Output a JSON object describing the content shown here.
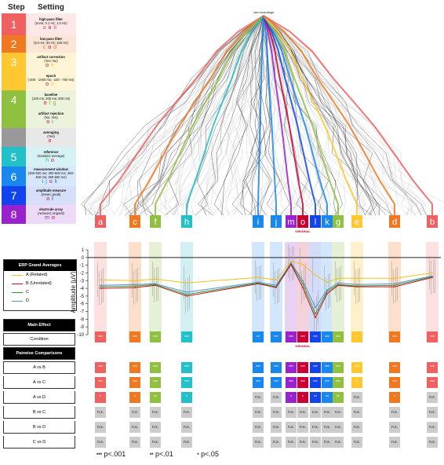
{
  "header": {
    "step": "Step",
    "setting": "Setting"
  },
  "steps": [
    {
      "num": "1",
      "color": "#f06060",
      "bg": "#fde8e8",
      "title": "high-pass filter",
      "detail": "(none; 0.1 Hz; 1.0 Hz)",
      "codes": "a o b"
    },
    {
      "num": "2",
      "color": "#f07820",
      "bg": "#fde6d6",
      "title": "low-pass filter",
      "detail": "(5.0 Hz; 30 Hz; 100 Hz)",
      "codes": "c o d"
    },
    {
      "num": "3",
      "color": "#ffc830",
      "bg": "#fff4d6",
      "title": "artifact correction",
      "detail": "(Yes; No)",
      "codes": "o e"
    },
    {
      "num": "",
      "color": "#ffc830",
      "bg": "#fff4d6",
      "title": "epoch",
      "detail": "(-200 - 1000 ms; -100 - 700 ms)",
      "codes": "o e"
    },
    {
      "num": "4",
      "color": "#90c040",
      "bg": "#ebf3dc",
      "title": "baseline",
      "detail": "(100 ms; 200 ms; 300 ms)",
      "codes": "o f g"
    },
    {
      "num": "",
      "color": "#90c040",
      "bg": "#ebf3dc",
      "title": "artifact rejection",
      "detail": "(No; Yes)",
      "codes": "o i"
    },
    {
      "num": "",
      "color": "#999999",
      "bg": "#e8e8e8",
      "title": "averaging",
      "detail": "(Yes)",
      "codes": "o"
    },
    {
      "num": "5",
      "color": "#22c0c8",
      "bg": "#d6f2f4",
      "title": "reference",
      "detail": "(mastoid; average)",
      "codes": "h o"
    },
    {
      "num": "6",
      "color": "#1888ee",
      "bg": "#d8e8fc",
      "title": "measurement window",
      "detail": "(300-500 ms; 300-600 ms; 350-450 ms; 350-550 ms)",
      "codes": "i j o k"
    },
    {
      "num": "7",
      "color": "#1144ee",
      "bg": "#d6def8",
      "title": "amplitude measure",
      "detail": "(mean; peak)",
      "codes": "o l"
    },
    {
      "num": "8",
      "color": "#9922cc",
      "bg": "#ecdaf6",
      "title": "electrode array",
      "detail": "(reduced; original)",
      "codes": "m o"
    }
  ],
  "tree": {
    "root_label": "raw recordings",
    "original_label": "ORIGINAL"
  },
  "pipelines": [
    {
      "letter": "a",
      "color": "#f06060",
      "bg": "#fde0e0"
    },
    {
      "letter": "c",
      "color": "#f07820",
      "bg": "#fde0cc"
    },
    {
      "letter": "f",
      "color": "#90c040",
      "bg": "#e6f0d4"
    },
    {
      "letter": "h",
      "color": "#22c0c8",
      "bg": "#d2f0f2"
    },
    {
      "letter": "i",
      "color": "#1888ee",
      "bg": "#d2e6fc"
    },
    {
      "letter": "j",
      "color": "#1888ee",
      "bg": "#d2e6fc"
    },
    {
      "letter": "m",
      "color": "#9922cc",
      "bg": "#e8d2f4"
    },
    {
      "letter": "o",
      "color": "#cc0033",
      "bg": "#f4d2dc"
    },
    {
      "letter": "l",
      "color": "#1144ee",
      "bg": "#d2dcf8"
    },
    {
      "letter": "k",
      "color": "#1888ee",
      "bg": "#d2e6fc"
    },
    {
      "letter": "g",
      "color": "#90c040",
      "bg": "#e6f0d4"
    },
    {
      "letter": "e",
      "color": "#ffc830",
      "bg": "#fff0cc"
    },
    {
      "letter": "d",
      "color": "#f07820",
      "bg": "#fde0cc"
    },
    {
      "letter": "b",
      "color": "#f06060",
      "bg": "#fde0e0"
    }
  ],
  "legend": {
    "title": "ERP Grand Averages",
    "items": [
      {
        "label": "A (Related)",
        "color": "#f0c020"
      },
      {
        "label": "B (Unrelated)",
        "color": "#cc1010"
      },
      {
        "label": "C",
        "color": "#2a9a3a"
      },
      {
        "label": "D",
        "color": "#5a8ad0"
      }
    ]
  },
  "stats": {
    "main_effect": "Main Effect",
    "condition": "Condition",
    "pairwise": "Pairwise Comparisons",
    "comparisons": [
      "A vs B",
      "A vs C",
      "A vs D",
      "B vs C",
      "B vs D",
      "C vs D"
    ],
    "ns": "n.s."
  },
  "footnote": {
    "p001": "p<.001",
    "p01": "p<.01",
    "p05": "p<.05"
  },
  "chart_data": {
    "type": "line",
    "ylabel": "Amplitude (μV)",
    "ylim": [
      -10,
      1
    ],
    "yticks": [
      1,
      0,
      -1,
      -2,
      -3,
      -4,
      -5,
      -6,
      -7,
      -8,
      -9,
      -10
    ],
    "categories": [
      "a",
      "c",
      "f",
      "h",
      "i",
      "j",
      "m",
      "o",
      "l",
      "k",
      "g",
      "e",
      "d",
      "b"
    ],
    "original_index": 7,
    "series": [
      {
        "name": "A (Related)",
        "color": "#f0c020",
        "values": [
          -2.9,
          -3.0,
          -2.8,
          -3.3,
          -2.6,
          -2.9,
          -0.5,
          -0.9,
          -2.3,
          -3.2,
          -2.7,
          -2.7,
          -2.7,
          -2.0
        ]
      },
      {
        "name": "B (Unrelated)",
        "color": "#cc1010",
        "values": [
          -4.0,
          -3.9,
          -3.6,
          -5.0,
          -3.4,
          -3.9,
          -0.9,
          -3.9,
          -7.8,
          -4.7,
          -3.6,
          -3.8,
          -3.8,
          -2.6
        ]
      },
      {
        "name": "C",
        "color": "#2a9a3a",
        "values": [
          -3.8,
          -3.7,
          -3.5,
          -4.8,
          -3.3,
          -3.8,
          -0.8,
          -3.4,
          -7.3,
          -4.4,
          -3.5,
          -3.7,
          -3.6,
          -2.5
        ]
      },
      {
        "name": "D",
        "color": "#5a8ad0",
        "values": [
          -3.6,
          -3.5,
          -3.4,
          -4.5,
          -3.2,
          -3.6,
          -0.7,
          -3.0,
          -6.5,
          -4.2,
          -3.3,
          -3.5,
          -3.4,
          -2.4
        ]
      }
    ],
    "significance": {
      "condition": [
        "***",
        "***",
        "***",
        "***",
        "**",
        "***",
        "***",
        "***",
        "***",
        "***",
        "***",
        "*",
        "***",
        "***"
      ],
      "A vs B": [
        "***",
        "***",
        "***",
        "***",
        "***",
        "***",
        "***",
        "***",
        "***",
        "***",
        "***",
        "***",
        "***",
        "***"
      ],
      "A vs C": [
        "***",
        "***",
        "***",
        "***",
        "***",
        "***",
        "***",
        "***",
        "***",
        "***",
        "***",
        "*",
        "***",
        "***"
      ],
      "A vs D": [
        "*",
        "*",
        "**",
        "*",
        "n.s.",
        "n.s.",
        "*",
        "*",
        "**",
        "**",
        "**",
        "n.s.",
        "*",
        "n.s."
      ],
      "B vs C": [
        "n.s.",
        "n.s.",
        "n.s.",
        "n.s.",
        "n.s.",
        "n.s.",
        "n.s.",
        "n.s.",
        "n.s.",
        "n.s.",
        "n.s.",
        "n.s.",
        "n.s.",
        "n.s."
      ],
      "B vs D": [
        "n.s.",
        "n.s.",
        "n.s.",
        "n.s.",
        "n.s.",
        "n.s.",
        "n.s.",
        "n.s.",
        "n.s.",
        "n.s.",
        "n.s.",
        "n.s.",
        "n.s.",
        "n.s."
      ],
      "C vs D": [
        "n.s.",
        "n.s.",
        "n.s.",
        "n.s.",
        "n.s.",
        "n.s.",
        "n.s.",
        "n.s.",
        "n.s.",
        "n.s.",
        "n.s.",
        "n.s.",
        "n.s.",
        "n.s."
      ]
    }
  }
}
